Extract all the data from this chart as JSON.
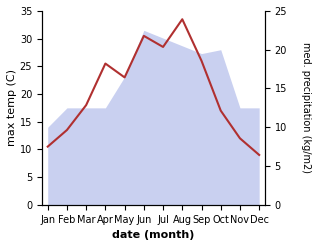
{
  "months": [
    "Jan",
    "Feb",
    "Mar",
    "Apr",
    "May",
    "Jun",
    "Jul",
    "Aug",
    "Sep",
    "Oct",
    "Nov",
    "Dec"
  ],
  "temperature": [
    10.5,
    13.5,
    18.0,
    25.5,
    23.0,
    30.5,
    28.5,
    33.5,
    26.0,
    17.0,
    12.0,
    9.0
  ],
  "precipitation": [
    10.0,
    12.5,
    12.5,
    12.5,
    16.5,
    22.5,
    21.5,
    20.5,
    19.5,
    20.0,
    12.5,
    12.5
  ],
  "temp_color": "#b03030",
  "precip_color": "#c0c8ee",
  "precip_alpha": 0.85,
  "temp_ylim": [
    0,
    35
  ],
  "precip_ylim": [
    0,
    25
  ],
  "temp_yticks": [
    0,
    5,
    10,
    15,
    20,
    25,
    30,
    35
  ],
  "precip_yticks": [
    0,
    5,
    10,
    15,
    20,
    25
  ],
  "xlabel": "date (month)",
  "ylabel_left": "max temp (C)",
  "ylabel_right": "med. precipitation (kg/m2)",
  "background_color": "#ffffff",
  "label_fontsize": 8,
  "tick_fontsize": 7
}
